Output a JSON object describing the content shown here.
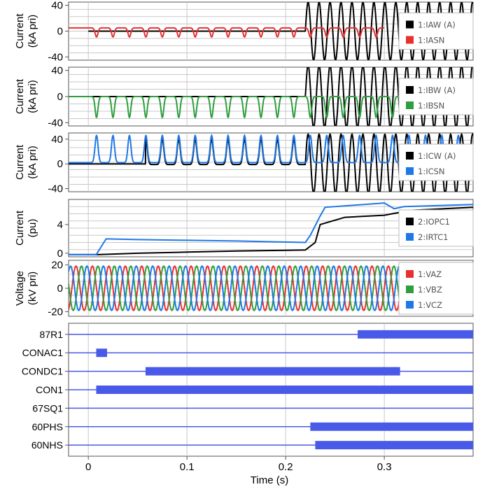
{
  "chart_data": [
    {
      "type": "line",
      "ylabel": [
        "Current",
        "(kA pri)"
      ],
      "ylim": [
        -45,
        45
      ],
      "yticks": [
        -40,
        0,
        40
      ],
      "xlim": [
        -0.02,
        0.39
      ],
      "grid": true,
      "legend_position": "right",
      "series": [
        {
          "name": "1:IAW (A)",
          "color": "#000000",
          "shape": "fault",
          "peak": 45,
          "amp_pre": 0,
          "offset_pre": 0,
          "start": 0.0,
          "end": 0.39
        },
        {
          "name": "1:IASN",
          "color": "#e83030",
          "shape": "dips",
          "amp_pre": 14,
          "offset_pre": 5,
          "start": -0.02,
          "end": 0.3
        }
      ]
    },
    {
      "type": "line",
      "ylabel": [
        "Current",
        "(kA pri)"
      ],
      "ylim": [
        -45,
        45
      ],
      "yticks": [
        -40,
        0,
        40
      ],
      "xlim": [
        -0.02,
        0.39
      ],
      "grid": true,
      "legend_position": "right",
      "series": [
        {
          "name": "1:IBW (A)",
          "color": "#000000",
          "shape": "fault",
          "peak": 48,
          "fault_start": 0.22,
          "start": -0.02,
          "end": 0.39
        },
        {
          "name": "1:IBSN",
          "color": "#2e9e3e",
          "shape": "dips",
          "amp_pre": 32,
          "offset_pre": 0,
          "start": -0.02,
          "end": 0.32
        }
      ]
    },
    {
      "type": "line",
      "ylabel": [
        "Current",
        "(kA pri)"
      ],
      "ylim": [
        -45,
        50
      ],
      "yticks": [
        -40,
        0,
        40
      ],
      "xlim": [
        -0.02,
        0.39
      ],
      "grid": true,
      "legend_position": "right",
      "series": [
        {
          "name": "1:ICW (A)",
          "color": "#000000",
          "shape": "fault",
          "peak": 48,
          "fault_start": 0.22,
          "start": -0.02,
          "end": 0.39
        },
        {
          "name": "1:ICSN",
          "color": "#1e78e6",
          "shape": "humps",
          "amp_pre": 44,
          "offset_pre": 2,
          "start": -0.02,
          "end": 0.39
        }
      ]
    },
    {
      "type": "line",
      "ylabel": [
        "Current",
        "(pu)"
      ],
      "ylim": [
        -0.5,
        7.5
      ],
      "yticks": [
        0,
        4
      ],
      "xlim": [
        -0.02,
        0.39
      ],
      "grid": true,
      "legend_position": "right",
      "series": [
        {
          "name": "2:IOPC1",
          "color": "#000000",
          "x": [
            -0.02,
            0.01,
            0.05,
            0.1,
            0.15,
            0.2,
            0.22,
            0.23,
            0.235,
            0.26,
            0.3,
            0.32,
            0.33,
            0.39
          ],
          "y": [
            -0.2,
            -0.2,
            0.0,
            0.15,
            0.3,
            0.4,
            0.45,
            1.5,
            4.0,
            5.0,
            5.3,
            5.8,
            6.0,
            6.4
          ]
        },
        {
          "name": "2:IRTC1",
          "color": "#1e78e6",
          "x": [
            -0.02,
            0.008,
            0.018,
            0.05,
            0.1,
            0.15,
            0.22,
            0.225,
            0.235,
            0.24,
            0.3,
            0.31,
            0.32,
            0.39
          ],
          "y": [
            -0.2,
            -0.2,
            2.0,
            1.9,
            1.8,
            1.7,
            1.5,
            2.5,
            5.2,
            6.4,
            7.0,
            6.2,
            6.5,
            6.8
          ]
        }
      ]
    },
    {
      "type": "line",
      "ylabel": [
        "Voltage",
        "(kV pri)"
      ],
      "ylim": [
        -24,
        24
      ],
      "yticks": [
        -20,
        0,
        20
      ],
      "xlim": [
        -0.02,
        0.39
      ],
      "grid": true,
      "legend_position": "right",
      "series": [
        {
          "name": "1:VAZ",
          "color": "#e83030",
          "shape": "sine",
          "amp": 19,
          "phase": 0,
          "start": -0.02,
          "end": 0.39
        },
        {
          "name": "1:VBZ",
          "color": "#2e9e3e",
          "shape": "sine",
          "amp": 19,
          "phase": -120,
          "start": -0.02,
          "end": 0.39
        },
        {
          "name": "1:VCZ",
          "color": "#1e78e6",
          "shape": "sine",
          "amp": 19,
          "phase": 120,
          "start": -0.02,
          "end": 0.39
        }
      ]
    }
  ],
  "digital": {
    "xlabel": "Time (s)",
    "xticks": [
      "0",
      "0.1",
      "0.2",
      "0.3"
    ],
    "xtick_values": [
      0,
      0.1,
      0.2,
      0.3
    ],
    "color": "#4a5ae8",
    "signals": [
      {
        "name": "87R1",
        "on": [
          [
            0.273,
            0.39
          ]
        ]
      },
      {
        "name": "CONAC1",
        "on": [
          [
            0.008,
            0.019
          ]
        ]
      },
      {
        "name": "CONDC1",
        "on": [
          [
            0.058,
            0.316
          ]
        ]
      },
      {
        "name": "CON1",
        "on": [
          [
            0.008,
            0.39
          ]
        ]
      },
      {
        "name": "67SQ1",
        "on": []
      },
      {
        "name": "60PHS",
        "on": [
          [
            0.225,
            0.39
          ]
        ]
      },
      {
        "name": "60NHS",
        "on": [
          [
            0.23,
            0.39
          ]
        ]
      }
    ]
  }
}
